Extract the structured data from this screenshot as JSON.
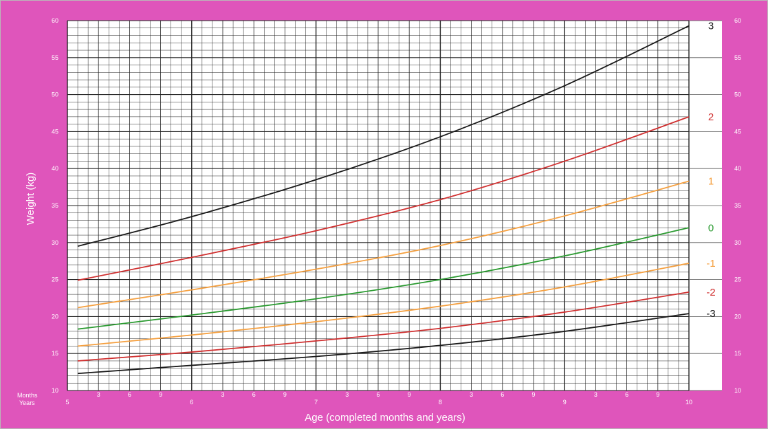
{
  "colors": {
    "frame": "#df55bb",
    "plot_bg": "#ffffff",
    "grid": "#222222",
    "tick_text": "#ffffff"
  },
  "chart_data": {
    "type": "line",
    "title": "",
    "xlabel": "Age (completed months and years)",
    "ylabel": "Weight (kg)",
    "x_unit": "years",
    "xlim": [
      5,
      10
    ],
    "ylim": [
      10,
      60
    ],
    "grid": true,
    "y_ticks": [
      10,
      15,
      20,
      25,
      30,
      35,
      40,
      45,
      50,
      55,
      60
    ],
    "x_year_ticks": [
      {
        "x": 5,
        "label": "5"
      },
      {
        "x": 6,
        "label": "6"
      },
      {
        "x": 7,
        "label": "7"
      },
      {
        "x": 8,
        "label": "8"
      },
      {
        "x": 9,
        "label": "9"
      },
      {
        "x": 10,
        "label": "10"
      }
    ],
    "x_month_ticks": [
      {
        "x": 5.25,
        "label": "3"
      },
      {
        "x": 5.5,
        "label": "6"
      },
      {
        "x": 5.75,
        "label": "9"
      },
      {
        "x": 6.25,
        "label": "3"
      },
      {
        "x": 6.5,
        "label": "6"
      },
      {
        "x": 6.75,
        "label": "9"
      },
      {
        "x": 7.25,
        "label": "3"
      },
      {
        "x": 7.5,
        "label": "6"
      },
      {
        "x": 7.75,
        "label": "9"
      },
      {
        "x": 8.25,
        "label": "3"
      },
      {
        "x": 8.5,
        "label": "6"
      },
      {
        "x": 8.75,
        "label": "9"
      },
      {
        "x": 9.25,
        "label": "3"
      },
      {
        "x": 9.5,
        "label": "6"
      },
      {
        "x": 9.75,
        "label": "9"
      }
    ],
    "axis_row_labels": {
      "months": "Months",
      "years": "Years"
    },
    "series": [
      {
        "name": "3",
        "color": "#1a1a1a",
        "x": [
          5.083,
          6,
          7,
          8,
          9,
          10
        ],
        "values": [
          29.5,
          33.5,
          38.5,
          44.3,
          51.2,
          59.3
        ]
      },
      {
        "name": "2",
        "color": "#d03030",
        "x": [
          5.083,
          6,
          7,
          8,
          9,
          10
        ],
        "values": [
          24.9,
          28.0,
          31.6,
          35.8,
          41.0,
          47.0
        ]
      },
      {
        "name": "1",
        "color": "#f5a040",
        "x": [
          5.083,
          6,
          7,
          8,
          9,
          10
        ],
        "values": [
          21.2,
          23.6,
          26.4,
          29.6,
          33.6,
          38.3
        ]
      },
      {
        "name": "0",
        "color": "#2a9a30",
        "x": [
          5.083,
          6,
          7,
          8,
          9,
          10
        ],
        "values": [
          18.3,
          20.2,
          22.4,
          25.0,
          28.2,
          32.0
        ]
      },
      {
        "name": "-1",
        "color": "#f5a040",
        "x": [
          5.083,
          6,
          7,
          8,
          9,
          10
        ],
        "values": [
          16.0,
          17.5,
          19.3,
          21.4,
          24.0,
          27.2
        ]
      },
      {
        "name": "-2",
        "color": "#d03030",
        "x": [
          5.083,
          6,
          7,
          8,
          9,
          10
        ],
        "values": [
          14.0,
          15.2,
          16.7,
          18.4,
          20.6,
          23.3
        ]
      },
      {
        "name": "-3",
        "color": "#1a1a1a",
        "x": [
          5.083,
          6,
          7,
          8,
          9,
          10
        ],
        "values": [
          12.3,
          13.4,
          14.6,
          16.1,
          18.0,
          20.4
        ]
      }
    ]
  }
}
